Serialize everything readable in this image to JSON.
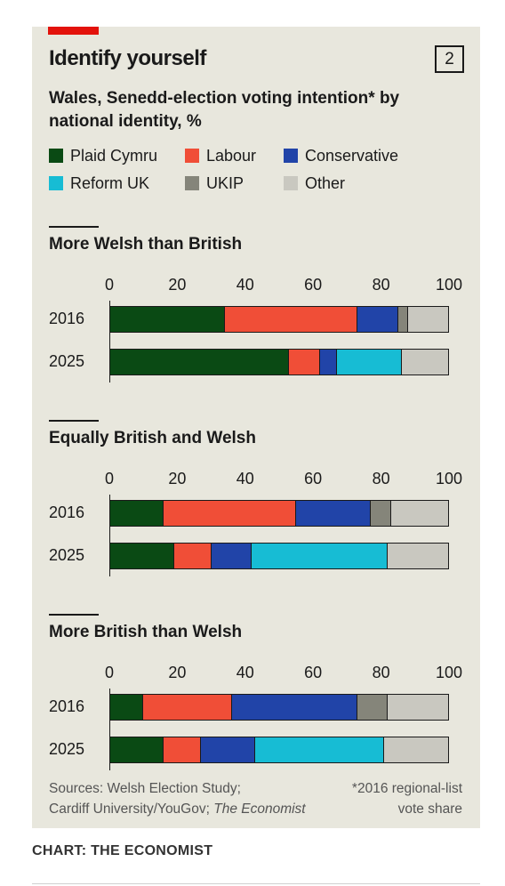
{
  "chart_number": "2",
  "credit": "CHART: THE ECONOMIST",
  "sources": {
    "prefix": "Sources: Welsh Election Study;",
    "line2_prefix": "Cardiff University/YouGov; ",
    "line2_italic": "The Economist"
  },
  "footnote": {
    "line1": "*2016 regional-list",
    "line2": "vote share"
  },
  "colors": {
    "Plaid Cymru": "#0a4a14",
    "Labour": "#f04e37",
    "Conservative": "#2144a8",
    "Reform UK": "#17bcd4",
    "UKIP": "#85857a",
    "Other": "#c9c8c0"
  },
  "chart_data": {
    "type": "bar",
    "orientation": "horizontal-stacked",
    "title": "Identify yourself",
    "subtitle": "Wales, Senedd-election voting intention* by national identity, %",
    "legend": [
      "Plaid Cymru",
      "Labour",
      "Conservative",
      "Reform UK",
      "UKIP",
      "Other"
    ],
    "xlim": [
      0,
      100
    ],
    "xticks": [
      "0",
      "20",
      "40",
      "60",
      "80",
      "100"
    ],
    "panels": [
      {
        "title": "More Welsh than British",
        "rows": [
          {
            "label": "2016",
            "values": {
              "Plaid Cymru": 34,
              "Labour": 39,
              "Conservative": 12,
              "Reform UK": 0,
              "UKIP": 3,
              "Other": 12
            }
          },
          {
            "label": "2025",
            "values": {
              "Plaid Cymru": 53,
              "Labour": 9,
              "Conservative": 5,
              "Reform UK": 19,
              "UKIP": 0,
              "Other": 14
            }
          }
        ]
      },
      {
        "title": "Equally British and Welsh",
        "rows": [
          {
            "label": "2016",
            "values": {
              "Plaid Cymru": 16,
              "Labour": 39,
              "Conservative": 22,
              "Reform UK": 0,
              "UKIP": 6,
              "Other": 17
            }
          },
          {
            "label": "2025",
            "values": {
              "Plaid Cymru": 19,
              "Labour": 11,
              "Conservative": 12,
              "Reform UK": 40,
              "UKIP": 0,
              "Other": 18
            }
          }
        ]
      },
      {
        "title": "More British than Welsh",
        "rows": [
          {
            "label": "2016",
            "values": {
              "Plaid Cymru": 10,
              "Labour": 26,
              "Conservative": 37,
              "Reform UK": 0,
              "UKIP": 9,
              "Other": 18
            }
          },
          {
            "label": "2025",
            "values": {
              "Plaid Cymru": 16,
              "Labour": 11,
              "Conservative": 16,
              "Reform UK": 38,
              "UKIP": 0,
              "Other": 19
            }
          }
        ]
      }
    ]
  }
}
